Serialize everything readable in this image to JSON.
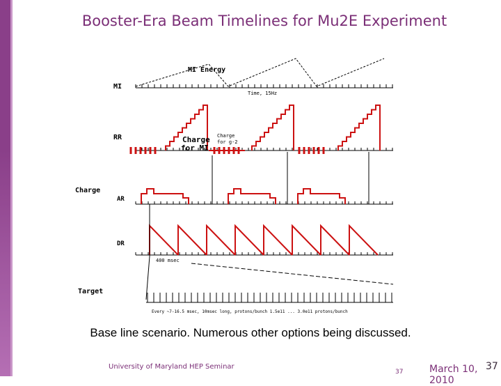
{
  "slide": {
    "title": "Booster-Era Beam Timelines for Mu2E Experiment",
    "caption": "Base line scenario.  Numerous other options being discussed.",
    "footer_left": "University of Maryland HEP Seminar",
    "footer_page": "37",
    "footer_date": "March 10, 2010",
    "footer_slide_number": "37"
  },
  "figure": {
    "rows": {
      "mi": "MI",
      "rr": "RR",
      "ar": "AR",
      "dr": "DR",
      "charge": "Charge",
      "target": "Target"
    },
    "labels": {
      "mi_energy": "MI Energy",
      "time_axis": "Time, 15Hz",
      "charge_for_mi_1": "Charge",
      "charge_for_mi_2": "for MI",
      "charge_for_g2_1": "Charge",
      "charge_for_g2_2": "for g-2",
      "dr_period": "400 msec",
      "target_note": "Every ~7-16.5 msec, 10msec long, protons/bunch 1.5e11 ... 3.0e11 protons/bunch"
    },
    "colors": {
      "trace": "#cc1111",
      "axis": "#000000"
    }
  }
}
